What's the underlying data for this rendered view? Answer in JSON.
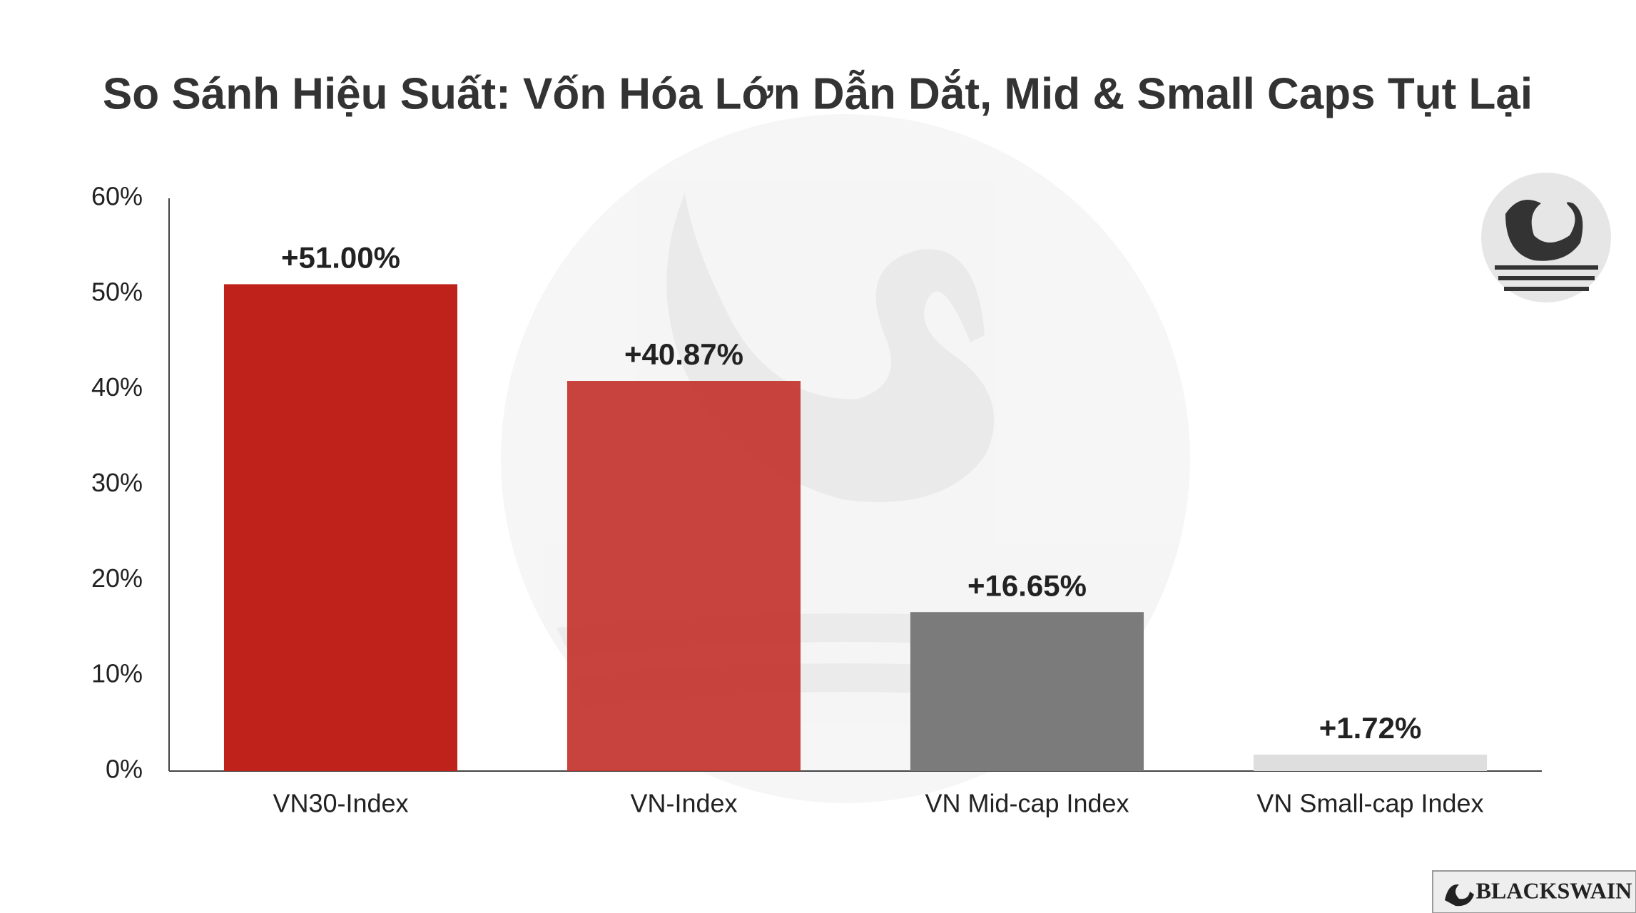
{
  "chart_data": {
    "type": "bar",
    "title": "So Sánh Hiệu Suất: Vốn Hóa Lớn Dẫn Dắt, Mid & Small Caps Tụt Lại",
    "categories": [
      "VN30-Index",
      "VN-Index",
      "VN Mid-cap Index",
      "VN Small-cap Index"
    ],
    "values": [
      51.0,
      40.87,
      16.65,
      1.72
    ],
    "value_labels": [
      "+51.00%",
      "+40.87%",
      "+16.65%",
      "+1.72%"
    ],
    "colors": [
      "#bf211b",
      "#c3332c",
      "#7b7b7b",
      "#dedede"
    ],
    "ylim": [
      0,
      60
    ],
    "yticks": [
      {
        "value": 0,
        "label": "0%"
      },
      {
        "value": 10,
        "label": "10%"
      },
      {
        "value": 20,
        "label": "20%"
      },
      {
        "value": 30,
        "label": "30%"
      },
      {
        "value": 40,
        "label": "40%"
      },
      {
        "value": 50,
        "label": "50%"
      },
      {
        "value": 60,
        "label": "60%"
      }
    ],
    "grid": false
  },
  "brand": "BLACKSWAIN"
}
